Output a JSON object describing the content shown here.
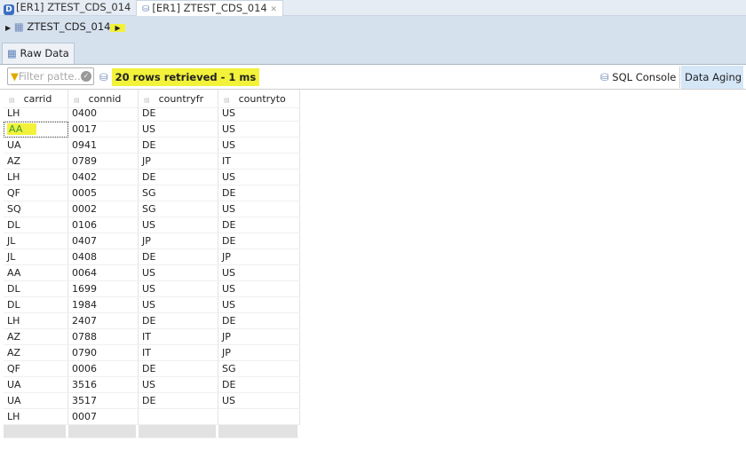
{
  "editor_tabs": [
    {
      "label": "[ER1] ZTEST_CDS_014",
      "icon": "ddl-source-icon",
      "active": false
    },
    {
      "label": "[ER1] ZTEST_CDS_014",
      "icon": "data-preview-icon",
      "active": true
    }
  ],
  "breadcrumb": {
    "label": "ZTEST_CDS_014"
  },
  "view_tab": {
    "label": "Raw Data"
  },
  "toolbar": {
    "filter_placeholder": "Filter patte...",
    "status": "20 rows retrieved - 1 ms",
    "sql_console": "SQL Console",
    "data_aging": "Data Aging"
  },
  "highlight_color": "#f2f23a",
  "table": {
    "columns": [
      "carrid",
      "connid",
      "countryfr",
      "countryto"
    ],
    "rows": [
      [
        "LH",
        "0400",
        "DE",
        "US"
      ],
      [
        "AA",
        "0017",
        "US",
        "US"
      ],
      [
        "UA",
        "0941",
        "DE",
        "US"
      ],
      [
        "AZ",
        "0789",
        "JP",
        "IT"
      ],
      [
        "LH",
        "0402",
        "DE",
        "US"
      ],
      [
        "QF",
        "0005",
        "SG",
        "DE"
      ],
      [
        "SQ",
        "0002",
        "SG",
        "US"
      ],
      [
        "DL",
        "0106",
        "US",
        "DE"
      ],
      [
        "JL",
        "0407",
        "JP",
        "DE"
      ],
      [
        "JL",
        "0408",
        "DE",
        "JP"
      ],
      [
        "AA",
        "0064",
        "US",
        "US"
      ],
      [
        "DL",
        "1699",
        "US",
        "US"
      ],
      [
        "DL",
        "1984",
        "US",
        "US"
      ],
      [
        "LH",
        "2407",
        "DE",
        "DE"
      ],
      [
        "AZ",
        "0788",
        "IT",
        "JP"
      ],
      [
        "AZ",
        "0790",
        "IT",
        "JP"
      ],
      [
        "QF",
        "0006",
        "DE",
        "SG"
      ],
      [
        "UA",
        "3516",
        "US",
        "DE"
      ],
      [
        "UA",
        "3517",
        "DE",
        "US"
      ],
      [
        "LH",
        "0007",
        "",
        ""
      ]
    ]
  }
}
